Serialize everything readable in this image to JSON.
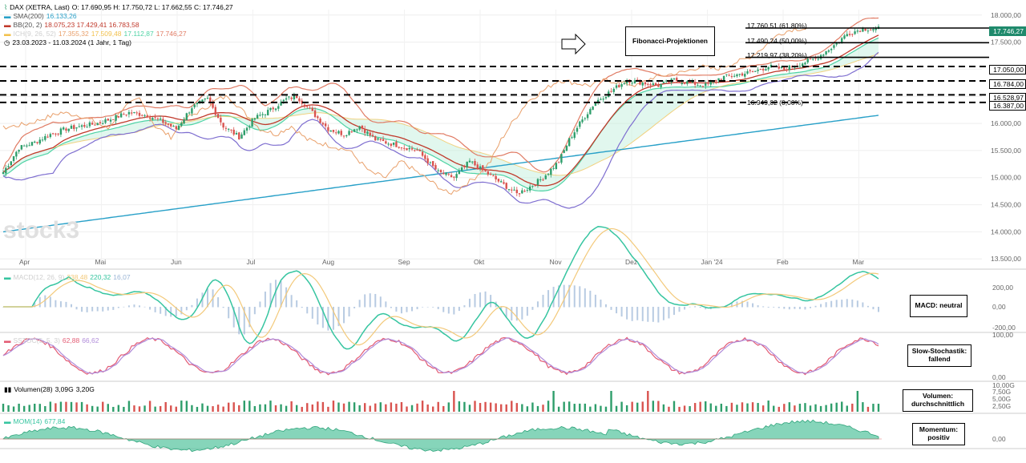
{
  "header": {
    "instrument": "DAX (XETRA, Last)",
    "ohlc": "O: 17.690,95  H: 17.750,72  L: 17.662,55  C: 17.746,27",
    "sma_label": "SMA(200)",
    "sma_value": "16.133,26",
    "bb_label": "BB(20, 2)",
    "bb_values": "18.075,23  17.429,41  16.783,58",
    "ichimoku_label": "ICH(9, 26, 52)",
    "ichimoku_values": [
      "17.355,32",
      "17.509,48",
      "17.112,87",
      "17.746,27"
    ],
    "period": "23.03.2023 - 11.03.2024  (1 Jahr, 1 Tag)"
  },
  "colors": {
    "bull": "#2e9e6b",
    "bear": "#d9534f",
    "sma": "#28a0c8",
    "bb": "#c0392b",
    "bb_outer": "#e07b64",
    "ich_a": "#4fd3a5",
    "ich_b": "#f2c14e",
    "lagging": "#e9a06b",
    "tenkan": "#7f6fd0",
    "price_tag": "#1f8a6c",
    "macd": "#36c5a0",
    "signal": "#f3c97a",
    "hist": "#9ab5d6",
    "stoch_k": "#e35c74",
    "stoch_d": "#b08bd9"
  },
  "watermark": "stock3",
  "fib": {
    "title": "Fibonacci-Projektionen",
    "levels": [
      "17.760,51 (61,80%)",
      "17.490,24 (50,00%)",
      "17.219,97 (38,20%)",
      "16.949,02 (0,00%)"
    ]
  },
  "levels": [
    "17.746,27",
    "17.050,00",
    "16.784,00",
    "16.528,97",
    "16.387,00"
  ],
  "price_axis": [
    "18.000,00",
    "17.500,00",
    "17.000,00",
    "16.500,00",
    "16.000,00",
    "15.500,00",
    "15.000,00",
    "14.500,00",
    "14.000,00",
    "13.500,00"
  ],
  "months": [
    "Apr",
    "Mai",
    "Jun",
    "Jul",
    "Aug",
    "Sep",
    "Okt",
    "Nov",
    "Dez",
    "Jan '24",
    "Feb",
    "Mar"
  ],
  "macd": {
    "label": "MACD(12, 26, 9)",
    "value1": "238,48",
    "value2": "220,32",
    "value3": "16,07",
    "axis": [
      "200,00",
      "0,00",
      "-200,00"
    ],
    "box": "MACD: neutral"
  },
  "stoch": {
    "label": "SSTOC(5, 5, 3)",
    "value1": "62,88",
    "value2": "66,62",
    "axis": [
      "100,00",
      "0,00"
    ],
    "box": "Slow-Stochastik: fallend"
  },
  "volume": {
    "label": "Volumen(28)",
    "value1": "3,09G",
    "value2": "3,20G",
    "axis": [
      "10,00G",
      "7,50G",
      "5,00G",
      "2,50G"
    ],
    "box": "Volumen: durchschnittlich"
  },
  "mom": {
    "label": "MOM(14)",
    "value": "677,84",
    "axis": [
      "0,00"
    ],
    "box": "Momentum: positiv"
  },
  "chart_data": {
    "type": "candlestick",
    "title": "DAX (XETRA, Last)",
    "x_range": [
      "23.03.2023",
      "11.03.2024"
    ],
    "y_range": [
      13500,
      18000
    ],
    "close_path": [
      [
        0,
        15100
      ],
      [
        6,
        15550
      ],
      [
        12,
        15650
      ],
      [
        18,
        15800
      ],
      [
        24,
        15900
      ],
      [
        30,
        15950
      ],
      [
        36,
        16000
      ],
      [
        42,
        16100
      ],
      [
        48,
        16200
      ],
      [
        55,
        16150
      ],
      [
        60,
        16050
      ],
      [
        66,
        15900
      ],
      [
        72,
        16300
      ],
      [
        78,
        16450
      ],
      [
        84,
        15950
      ],
      [
        90,
        15750
      ],
      [
        96,
        16100
      ],
      [
        102,
        16250
      ],
      [
        108,
        16450
      ],
      [
        112,
        16500
      ],
      [
        118,
        16200
      ],
      [
        124,
        15900
      ],
      [
        130,
        15800
      ],
      [
        136,
        15950
      ],
      [
        142,
        15700
      ],
      [
        150,
        15600
      ],
      [
        158,
        15500
      ],
      [
        162,
        15300
      ],
      [
        166,
        15100
      ],
      [
        172,
        15000
      ],
      [
        178,
        15300
      ],
      [
        184,
        15100
      ],
      [
        190,
        14900
      ],
      [
        196,
        14700
      ],
      [
        200,
        14800
      ],
      [
        206,
        15000
      ],
      [
        212,
        15300
      ],
      [
        216,
        15700
      ],
      [
        220,
        16000
      ],
      [
        226,
        16400
      ],
      [
        232,
        16600
      ],
      [
        238,
        16800
      ],
      [
        244,
        16750
      ],
      [
        250,
        16700
      ],
      [
        256,
        16800
      ],
      [
        262,
        16750
      ],
      [
        268,
        16700
      ],
      [
        274,
        16850
      ],
      [
        280,
        16900
      ],
      [
        286,
        16950
      ],
      [
        292,
        17050
      ],
      [
        298,
        17000
      ],
      [
        304,
        17100
      ],
      [
        310,
        17200
      ],
      [
        316,
        17400
      ],
      [
        322,
        17650
      ],
      [
        328,
        17750
      ],
      [
        334,
        17746
      ]
    ]
  }
}
